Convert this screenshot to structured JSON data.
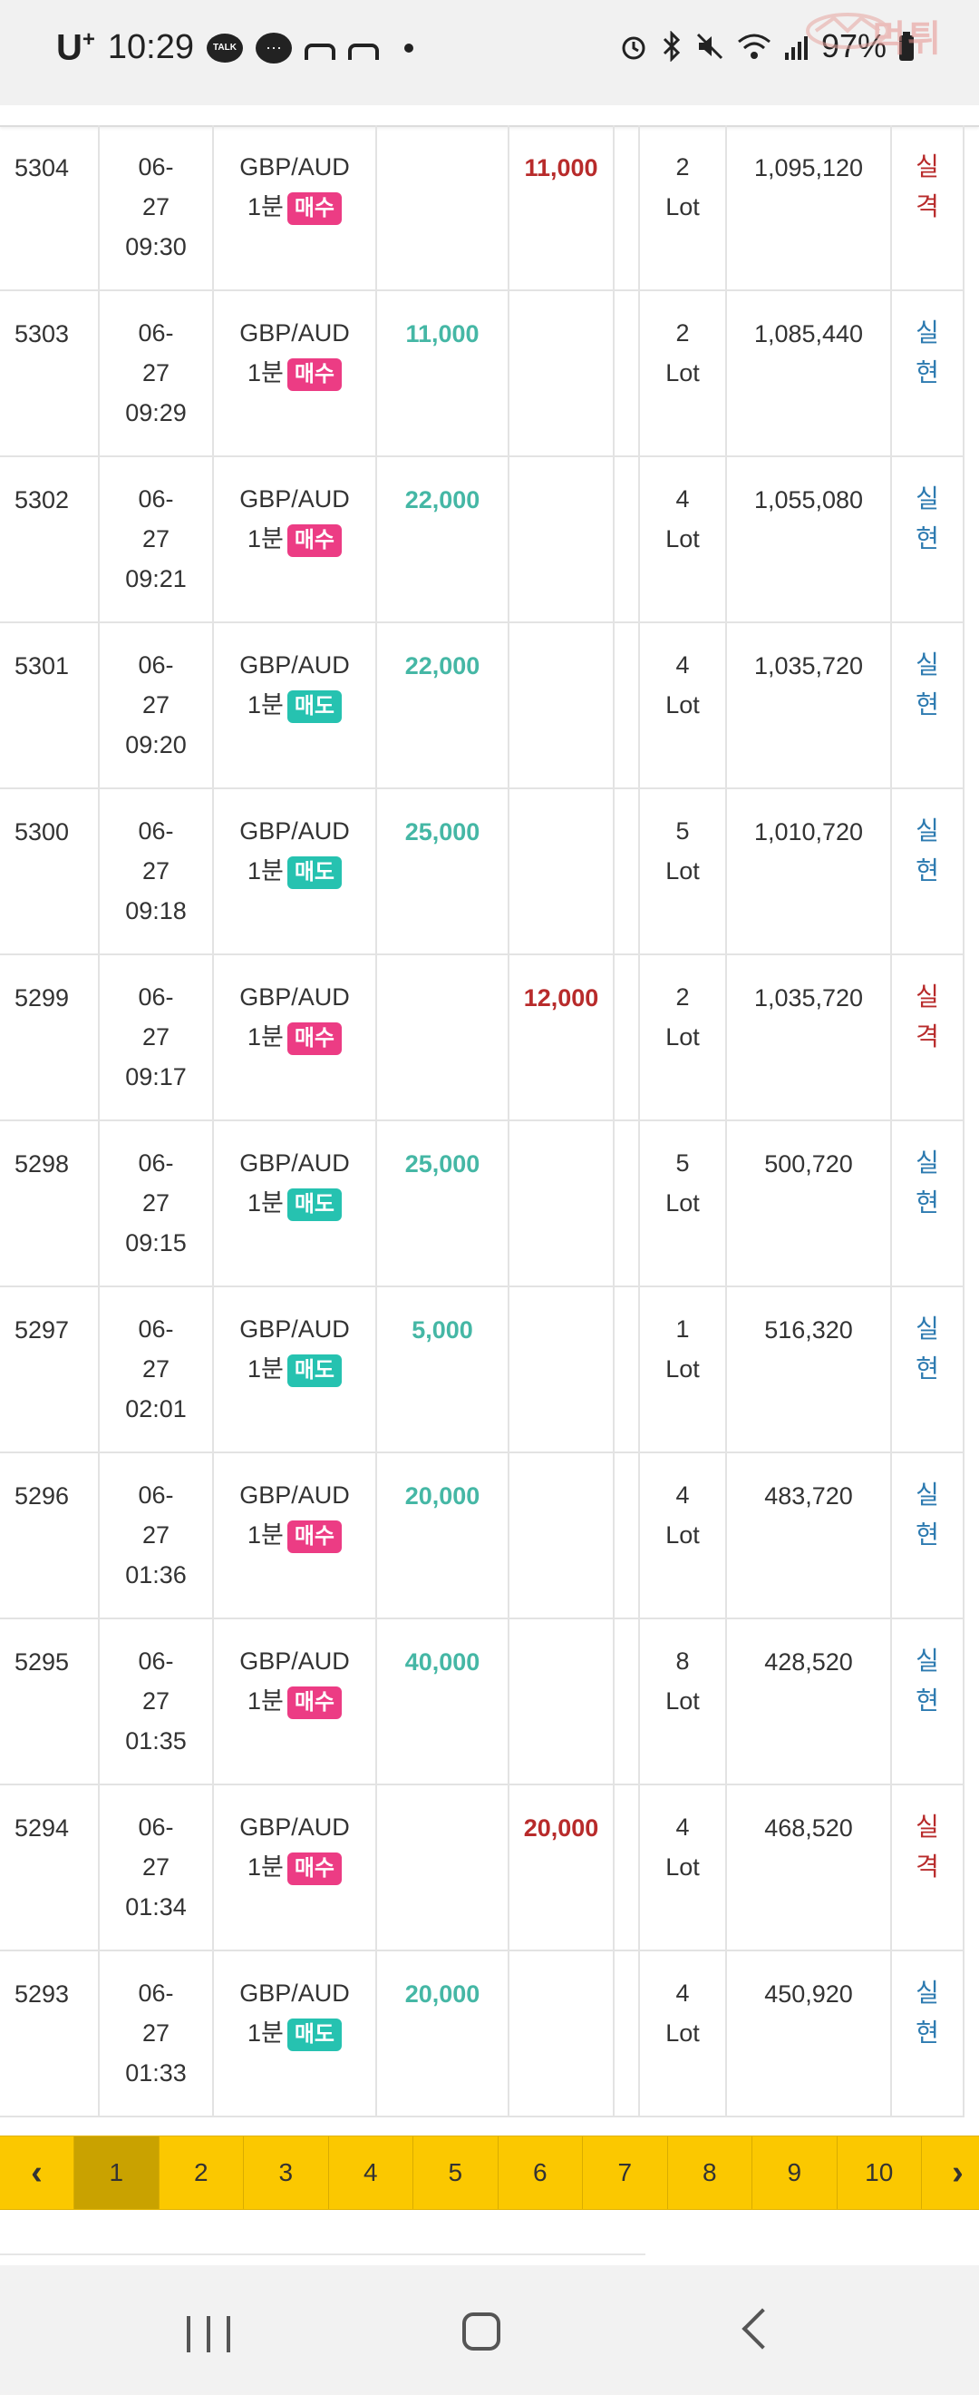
{
  "status_bar": {
    "carrier": "U",
    "carrier_sup": "+",
    "time": "10:29",
    "talk_label": "TALK",
    "battery": "97%",
    "watermark": "먹튀"
  },
  "rows": [
    {
      "no": "5304",
      "date": "06-",
      "day": "27",
      "time": "09:30",
      "pair": "GBP/AUD",
      "tf": "1분",
      "side": "매수",
      "side_type": "buy",
      "profit": "",
      "loss": "11,000",
      "lot_n": "2",
      "lot_u": "Lot",
      "balance": "1,095,120",
      "r1": "실",
      "r2": "격",
      "result_type": "fail"
    },
    {
      "no": "5303",
      "date": "06-",
      "day": "27",
      "time": "09:29",
      "pair": "GBP/AUD",
      "tf": "1분",
      "side": "매수",
      "side_type": "buy",
      "profit": "11,000",
      "loss": "",
      "lot_n": "2",
      "lot_u": "Lot",
      "balance": "1,085,440",
      "r1": "실",
      "r2": "현",
      "result_type": "ok"
    },
    {
      "no": "5302",
      "date": "06-",
      "day": "27",
      "time": "09:21",
      "pair": "GBP/AUD",
      "tf": "1분",
      "side": "매수",
      "side_type": "buy",
      "profit": "22,000",
      "loss": "",
      "lot_n": "4",
      "lot_u": "Lot",
      "balance": "1,055,080",
      "r1": "실",
      "r2": "현",
      "result_type": "ok"
    },
    {
      "no": "5301",
      "date": "06-",
      "day": "27",
      "time": "09:20",
      "pair": "GBP/AUD",
      "tf": "1분",
      "side": "매도",
      "side_type": "sell",
      "profit": "22,000",
      "loss": "",
      "lot_n": "4",
      "lot_u": "Lot",
      "balance": "1,035,720",
      "r1": "실",
      "r2": "현",
      "result_type": "ok"
    },
    {
      "no": "5300",
      "date": "06-",
      "day": "27",
      "time": "09:18",
      "pair": "GBP/AUD",
      "tf": "1분",
      "side": "매도",
      "side_type": "sell",
      "profit": "25,000",
      "loss": "",
      "lot_n": "5",
      "lot_u": "Lot",
      "balance": "1,010,720",
      "r1": "실",
      "r2": "현",
      "result_type": "ok"
    },
    {
      "no": "5299",
      "date": "06-",
      "day": "27",
      "time": "09:17",
      "pair": "GBP/AUD",
      "tf": "1분",
      "side": "매수",
      "side_type": "buy",
      "profit": "",
      "loss": "12,000",
      "lot_n": "2",
      "lot_u": "Lot",
      "balance": "1,035,720",
      "r1": "실",
      "r2": "격",
      "result_type": "fail"
    },
    {
      "no": "5298",
      "date": "06-",
      "day": "27",
      "time": "09:15",
      "pair": "GBP/AUD",
      "tf": "1분",
      "side": "매도",
      "side_type": "sell",
      "profit": "25,000",
      "loss": "",
      "lot_n": "5",
      "lot_u": "Lot",
      "balance": "500,720",
      "r1": "실",
      "r2": "현",
      "result_type": "ok"
    },
    {
      "no": "5297",
      "date": "06-",
      "day": "27",
      "time": "02:01",
      "pair": "GBP/AUD",
      "tf": "1분",
      "side": "매도",
      "side_type": "sell",
      "profit": "5,000",
      "loss": "",
      "lot_n": "1",
      "lot_u": "Lot",
      "balance": "516,320",
      "r1": "실",
      "r2": "현",
      "result_type": "ok"
    },
    {
      "no": "5296",
      "date": "06-",
      "day": "27",
      "time": "01:36",
      "pair": "GBP/AUD",
      "tf": "1분",
      "side": "매수",
      "side_type": "buy",
      "profit": "20,000",
      "loss": "",
      "lot_n": "4",
      "lot_u": "Lot",
      "balance": "483,720",
      "r1": "실",
      "r2": "현",
      "result_type": "ok"
    },
    {
      "no": "5295",
      "date": "06-",
      "day": "27",
      "time": "01:35",
      "pair": "GBP/AUD",
      "tf": "1분",
      "side": "매수",
      "side_type": "buy",
      "profit": "40,000",
      "loss": "",
      "lot_n": "8",
      "lot_u": "Lot",
      "balance": "428,520",
      "r1": "실",
      "r2": "현",
      "result_type": "ok"
    },
    {
      "no": "5294",
      "date": "06-",
      "day": "27",
      "time": "01:34",
      "pair": "GBP/AUD",
      "tf": "1분",
      "side": "매수",
      "side_type": "buy",
      "profit": "",
      "loss": "20,000",
      "lot_n": "4",
      "lot_u": "Lot",
      "balance": "468,520",
      "r1": "실",
      "r2": "격",
      "result_type": "fail"
    },
    {
      "no": "5293",
      "date": "06-",
      "day": "27",
      "time": "01:33",
      "pair": "GBP/AUD",
      "tf": "1분",
      "side": "매도",
      "side_type": "sell",
      "profit": "20,000",
      "loss": "",
      "lot_n": "4",
      "lot_u": "Lot",
      "balance": "450,920",
      "r1": "실",
      "r2": "현",
      "result_type": "ok"
    }
  ],
  "pagination": {
    "prev": "‹",
    "next": "›",
    "pages": [
      "1",
      "2",
      "3",
      "4",
      "5",
      "6",
      "7",
      "8",
      "9",
      "10"
    ],
    "current": "1"
  },
  "colors": {
    "profit": "#45b7a5",
    "loss": "#b82b2b",
    "buy_badge": "#ec3c84",
    "sell_badge": "#26c2b0",
    "pager_bg": "#fbc800",
    "result_ok": "#2c7ab0",
    "result_fail": "#b82b2b"
  },
  "nav_bar": {
    "icons": [
      "recent-apps-icon",
      "home-icon",
      "back-icon"
    ]
  }
}
